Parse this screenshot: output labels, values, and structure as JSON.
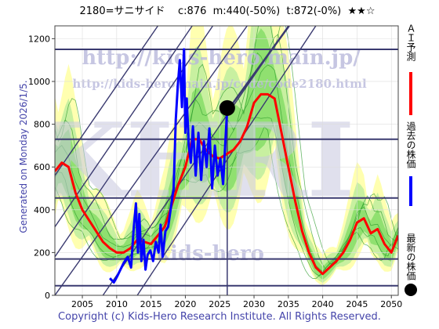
{
  "header": {
    "code_name": "2180=サニサイド",
    "current": "c:876",
    "min": "m:440(-50%)",
    "target": "t:872(-0%)",
    "stars": "★★☆"
  },
  "generated": "Generated on Monday 2026/1/5.",
  "copyright": "Copyright (c) Kids-Hero Research Institute. All Rights Reserved.",
  "watermarks": {
    "url_main": "http://kids-hero.main.jp/",
    "url_code": "http://kids-hero.main.jp/code/code2180.html",
    "brand": "kids-hero",
    "big": "KHRI"
  },
  "legend": [
    {
      "label": "ＡＩ予測",
      "color": "#ff0000",
      "marker": "line"
    },
    {
      "label": "過去の株価",
      "color": "#0000ff",
      "marker": "line"
    },
    {
      "label": "最新の株価",
      "color": "#000000",
      "marker": "dot"
    }
  ],
  "colors": {
    "ai_prediction": "#ff0000",
    "past_price": "#0000ff",
    "latest_price": "#000000",
    "band_yellow": "#ffffb0",
    "band_green_light": "#c8f0a0",
    "band_green": "#90e070",
    "band_line": "#2a9a2a",
    "guide_line": "#3a3a70"
  },
  "chart_data": {
    "type": "line",
    "xlim": [
      2001,
      2051
    ],
    "ylim": [
      0,
      1260
    ],
    "x_ticks": [
      2005,
      2010,
      2015,
      2020,
      2025,
      2030,
      2035,
      2040,
      2045,
      2050
    ],
    "y_ticks": [
      0,
      200,
      400,
      600,
      800,
      1000,
      1200
    ],
    "horizontal_levels": [
      1150,
      730,
      455,
      170,
      45
    ],
    "current_year_marker": 2026.1,
    "latest_price": {
      "x": 2026.1,
      "y": 876
    },
    "diagonal_lines": [
      {
        "x": [
          2001,
          2016
        ],
        "y": [
          560,
          1260
        ]
      },
      {
        "x": [
          2001,
          2021
        ],
        "y": [
          320,
          1260
        ]
      },
      {
        "x": [
          2001,
          2024
        ],
        "y": [
          180,
          1260
        ]
      },
      {
        "x": [
          2001,
          2029
        ],
        "y": [
          0,
          1260
        ]
      },
      {
        "x": [
          2008,
          2035
        ],
        "y": [
          0,
          1260
        ]
      },
      {
        "x": [
          2013,
          2039
        ],
        "y": [
          0,
          1260
        ]
      },
      {
        "x": [
          2026.5,
          2035.1
        ],
        "y": [
          880,
          1260
        ]
      }
    ],
    "series": [
      {
        "name": "ＡＩ予測",
        "color": "#ff0000",
        "x": [
          2001,
          2002,
          2003,
          2004,
          2005,
          2006,
          2007,
          2008,
          2009,
          2010,
          2011,
          2012,
          2013,
          2014,
          2015,
          2016,
          2017,
          2018,
          2019,
          2020,
          2021,
          2022,
          2023,
          2024,
          2025,
          2026,
          2027,
          2028,
          2029,
          2030,
          2031,
          2032,
          2033,
          2034,
          2035,
          2036,
          2037,
          2038,
          2039,
          2040,
          2041,
          2042,
          2043,
          2044,
          2045,
          2046,
          2047,
          2048,
          2049,
          2050,
          2051
        ],
        "y": [
          580,
          620,
          600,
          480,
          400,
          350,
          300,
          250,
          220,
          200,
          200,
          220,
          260,
          250,
          240,
          280,
          320,
          420,
          520,
          600,
          730,
          730,
          680,
          650,
          640,
          660,
          680,
          720,
          790,
          900,
          940,
          940,
          920,
          760,
          600,
          440,
          300,
          200,
          130,
          100,
          130,
          160,
          200,
          260,
          340,
          360,
          290,
          310,
          240,
          200,
          280
        ]
      },
      {
        "name": "過去の株価",
        "color": "#0000ff",
        "x": [
          2009,
          2009.6,
          2010.1,
          2011,
          2011.6,
          2012.1,
          2012.5,
          2012.8,
          2013.1,
          2013.3,
          2013.6,
          2013.9,
          2014.2,
          2014.5,
          2014.9,
          2015.3,
          2015.7,
          2016.1,
          2016.4,
          2016.7,
          2017.1,
          2017.5,
          2017.9,
          2018.3,
          2018.6,
          2018.9,
          2019.2,
          2019.5,
          2019.8,
          2020.0,
          2020.2,
          2020.5,
          2020.8,
          2021.1,
          2021.5,
          2021.9,
          2022.3,
          2022.7,
          2023.1,
          2023.5,
          2023.9,
          2024.3,
          2024.7,
          2025.1,
          2025.5,
          2025.9,
          2026.1
        ],
        "y": [
          80,
          60,
          90,
          150,
          180,
          130,
          320,
          430,
          200,
          380,
          160,
          260,
          120,
          190,
          210,
          160,
          250,
          200,
          330,
          180,
          300,
          320,
          410,
          500,
          820,
          980,
          1100,
          880,
          1150,
          760,
          920,
          700,
          620,
          790,
          560,
          760,
          540,
          720,
          600,
          780,
          500,
          700,
          560,
          640,
          520,
          760,
          876
        ]
      }
    ]
  }
}
